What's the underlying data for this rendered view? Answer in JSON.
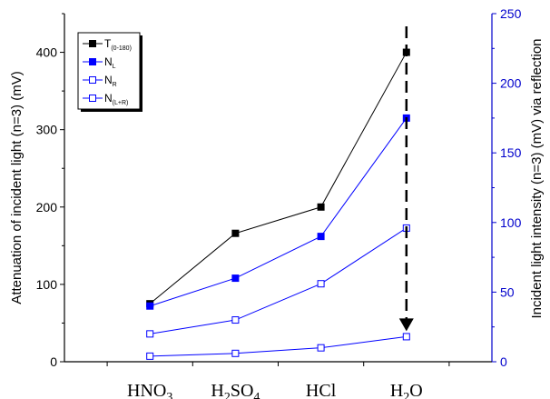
{
  "chart_data": {
    "type": "line",
    "categories": [
      {
        "base": "HNO",
        "sub": "3",
        "tail": ""
      },
      {
        "base": "H",
        "sub": "2",
        "tail": "SO",
        "sub2": "4"
      },
      {
        "base": "HCl",
        "sub": "",
        "tail": ""
      },
      {
        "base": "H",
        "sub": "2",
        "tail": "O"
      }
    ],
    "ylabel_left": "Attenuation of incident light (n=3) (mV)",
    "ylabel_right": "Incident light intensity (n=3) (mV) via reflection",
    "ylim_left": [
      0,
      450
    ],
    "ylim_right": [
      0,
      250
    ],
    "yticks_left": [
      "0",
      "100",
      "200",
      "300",
      "400"
    ],
    "yticks_right": [
      "0",
      "50",
      "100",
      "150",
      "200",
      "250"
    ],
    "xlim": [
      0,
      5
    ],
    "series": [
      {
        "name_base": "T",
        "name_sub": "(0-180)",
        "axis": "left",
        "color": "#000000",
        "filled": true,
        "values": [
          75,
          166,
          200,
          400
        ]
      },
      {
        "name_base": "N",
        "name_sub": "L",
        "axis": "right",
        "color": "#0000ff",
        "filled": true,
        "values": [
          40,
          60,
          90,
          175
        ]
      },
      {
        "name_base": "N",
        "name_sub": "R",
        "axis": "right",
        "color": "#0000ff",
        "filled": false,
        "values": [
          20,
          30,
          56,
          96
        ]
      },
      {
        "name_base": "N",
        "name_sub": "(L+R)",
        "axis": "right",
        "color": "#0000ff",
        "filled": false,
        "values": [
          4,
          6,
          10,
          18
        ]
      }
    ],
    "arrow": {
      "from": {
        "x": 4,
        "y_right": 250
      },
      "to": {
        "x": 4,
        "y_right": 18
      },
      "style": "dashed"
    },
    "legend_position": "top-left",
    "grid": false
  }
}
